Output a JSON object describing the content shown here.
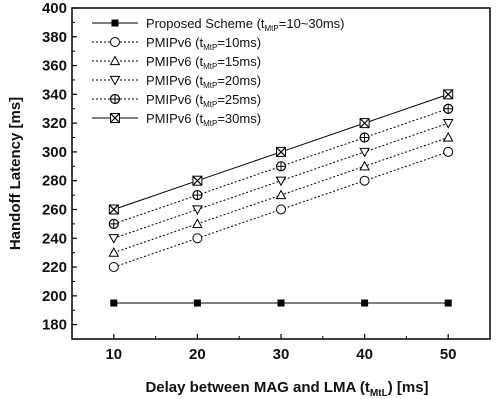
{
  "chart_data": {
    "type": "line",
    "xlabel_main": "Delay between MAG and LMA (t",
    "xlabel_sub": "MtL",
    "xlabel_tail": ") [ms]",
    "ylabel": "Handoff Latency [ms]",
    "xlim": [
      5,
      55
    ],
    "ylim": [
      170,
      400
    ],
    "xticks": [
      10,
      20,
      30,
      40,
      50
    ],
    "yticks": [
      180,
      200,
      220,
      240,
      260,
      280,
      300,
      320,
      340,
      360,
      380,
      400
    ],
    "x": [
      10,
      20,
      30,
      40,
      50
    ],
    "legend_position": "top-left",
    "series": [
      {
        "label_main": "Proposed Scheme (t",
        "label_sub": "MtP",
        "label_tail": "=10~30ms)",
        "marker": "filled-square",
        "dash": "solid",
        "values": [
          195,
          195,
          195,
          195,
          195
        ]
      },
      {
        "label_main": "PMIPv6 (t",
        "label_sub": "MtP",
        "label_tail": "=10ms)",
        "marker": "circle",
        "dash": "dotted",
        "values": [
          220,
          240,
          260,
          280,
          300
        ]
      },
      {
        "label_main": "PMIPv6 (t",
        "label_sub": "MtP",
        "label_tail": "=15ms)",
        "marker": "triangle-up",
        "dash": "dotted",
        "values": [
          230,
          250,
          270,
          290,
          310
        ]
      },
      {
        "label_main": "PMIPv6 (t",
        "label_sub": "MtP",
        "label_tail": "=20ms)",
        "marker": "triangle-down",
        "dash": "dotted",
        "values": [
          240,
          260,
          280,
          300,
          320
        ]
      },
      {
        "label_main": "PMIPv6 (t",
        "label_sub": "MtP",
        "label_tail": "=25ms)",
        "marker": "circle-plus",
        "dash": "dotted",
        "values": [
          250,
          270,
          290,
          310,
          330
        ]
      },
      {
        "label_main": "PMIPv6 (t",
        "label_sub": "MtP",
        "label_tail": "=30ms)",
        "marker": "x-square",
        "dash": "solid",
        "values": [
          260,
          280,
          300,
          320,
          340
        ]
      }
    ]
  }
}
